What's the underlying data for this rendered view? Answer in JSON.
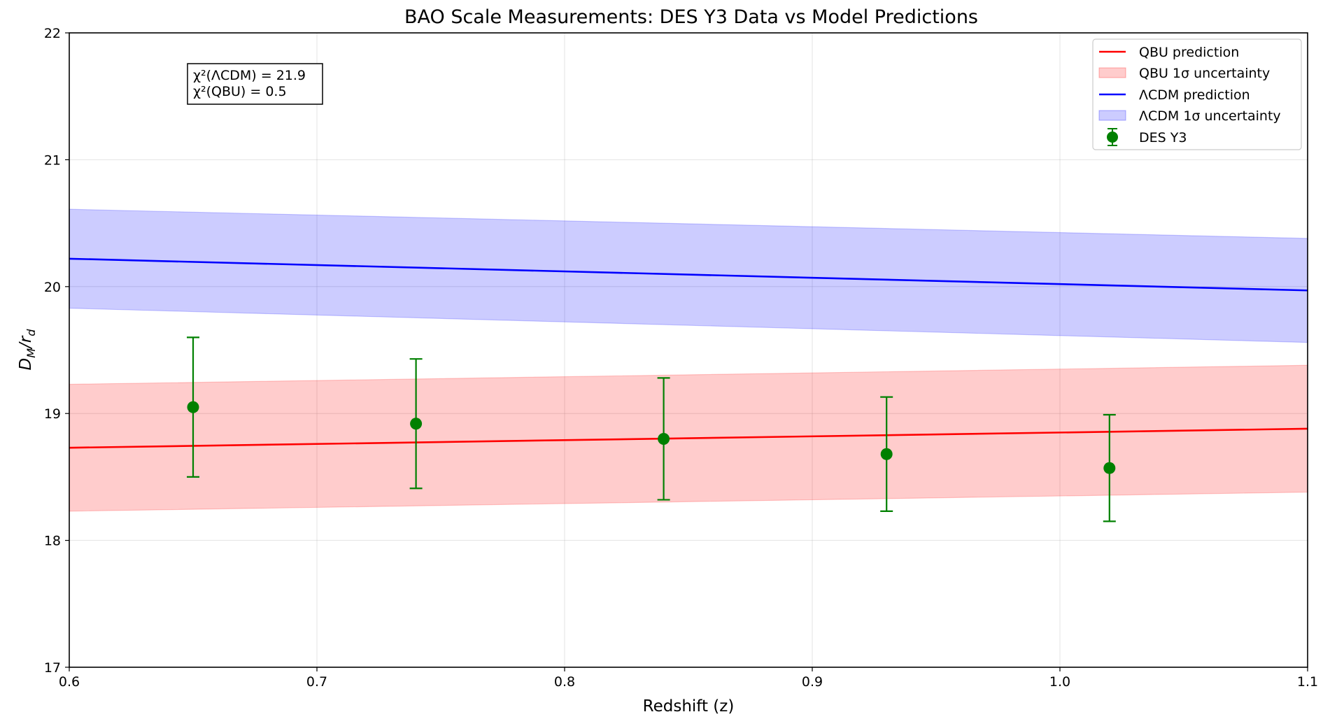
{
  "chart_data": {
    "type": "line",
    "title": "BAO Scale Measurements: DES Y3 Data vs Model Predictions",
    "xlabel": "Redshift (z)",
    "ylabel_main": "D",
    "ylabel_sub1": "M",
    "ylabel_mid": "/r",
    "ylabel_sub2": "d",
    "xlim": [
      0.6,
      1.1
    ],
    "ylim": [
      17,
      22
    ],
    "xticks": [
      0.6,
      0.7,
      0.8,
      0.9,
      1.0,
      1.1
    ],
    "xtick_labels": [
      "0.6",
      "0.7",
      "0.8",
      "0.9",
      "1.0",
      "1.1"
    ],
    "yticks": [
      17,
      18,
      19,
      20,
      21,
      22
    ],
    "ytick_labels": [
      "17",
      "18",
      "19",
      "20",
      "21",
      "22"
    ],
    "grid": true,
    "legend_position": "top-right",
    "series": [
      {
        "name": "QBU prediction",
        "kind": "line",
        "color": "#ff0000",
        "x": [
          0.6,
          1.1
        ],
        "y": [
          18.73,
          18.88
        ]
      },
      {
        "name": "QBU 1σ uncertainty",
        "kind": "band",
        "color": "#ff0000",
        "x": [
          0.6,
          1.1
        ],
        "y_low": [
          18.23,
          18.38
        ],
        "y_high": [
          19.23,
          19.38
        ]
      },
      {
        "name": "ΛCDM prediction",
        "kind": "line",
        "color": "#0000ff",
        "x": [
          0.6,
          1.1
        ],
        "y": [
          20.22,
          19.97
        ]
      },
      {
        "name": "ΛCDM 1σ uncertainty",
        "kind": "band",
        "color": "#0000ff",
        "x": [
          0.6,
          1.1
        ],
        "y_low": [
          19.83,
          19.56
        ],
        "y_high": [
          20.61,
          20.38
        ]
      },
      {
        "name": "DES Y3",
        "kind": "errorbar",
        "color": "#008000",
        "x": [
          0.65,
          0.74,
          0.84,
          0.93,
          1.02
        ],
        "y": [
          19.05,
          18.92,
          18.8,
          18.68,
          18.57
        ],
        "err_low": [
          0.55,
          0.51,
          0.48,
          0.45,
          0.42
        ],
        "err_high": [
          0.55,
          0.51,
          0.48,
          0.45,
          0.42
        ]
      }
    ],
    "annotation": {
      "lines": [
        "χ²(ΛCDM) = 21.9",
        "χ²(QBU) = 0.5"
      ]
    }
  }
}
